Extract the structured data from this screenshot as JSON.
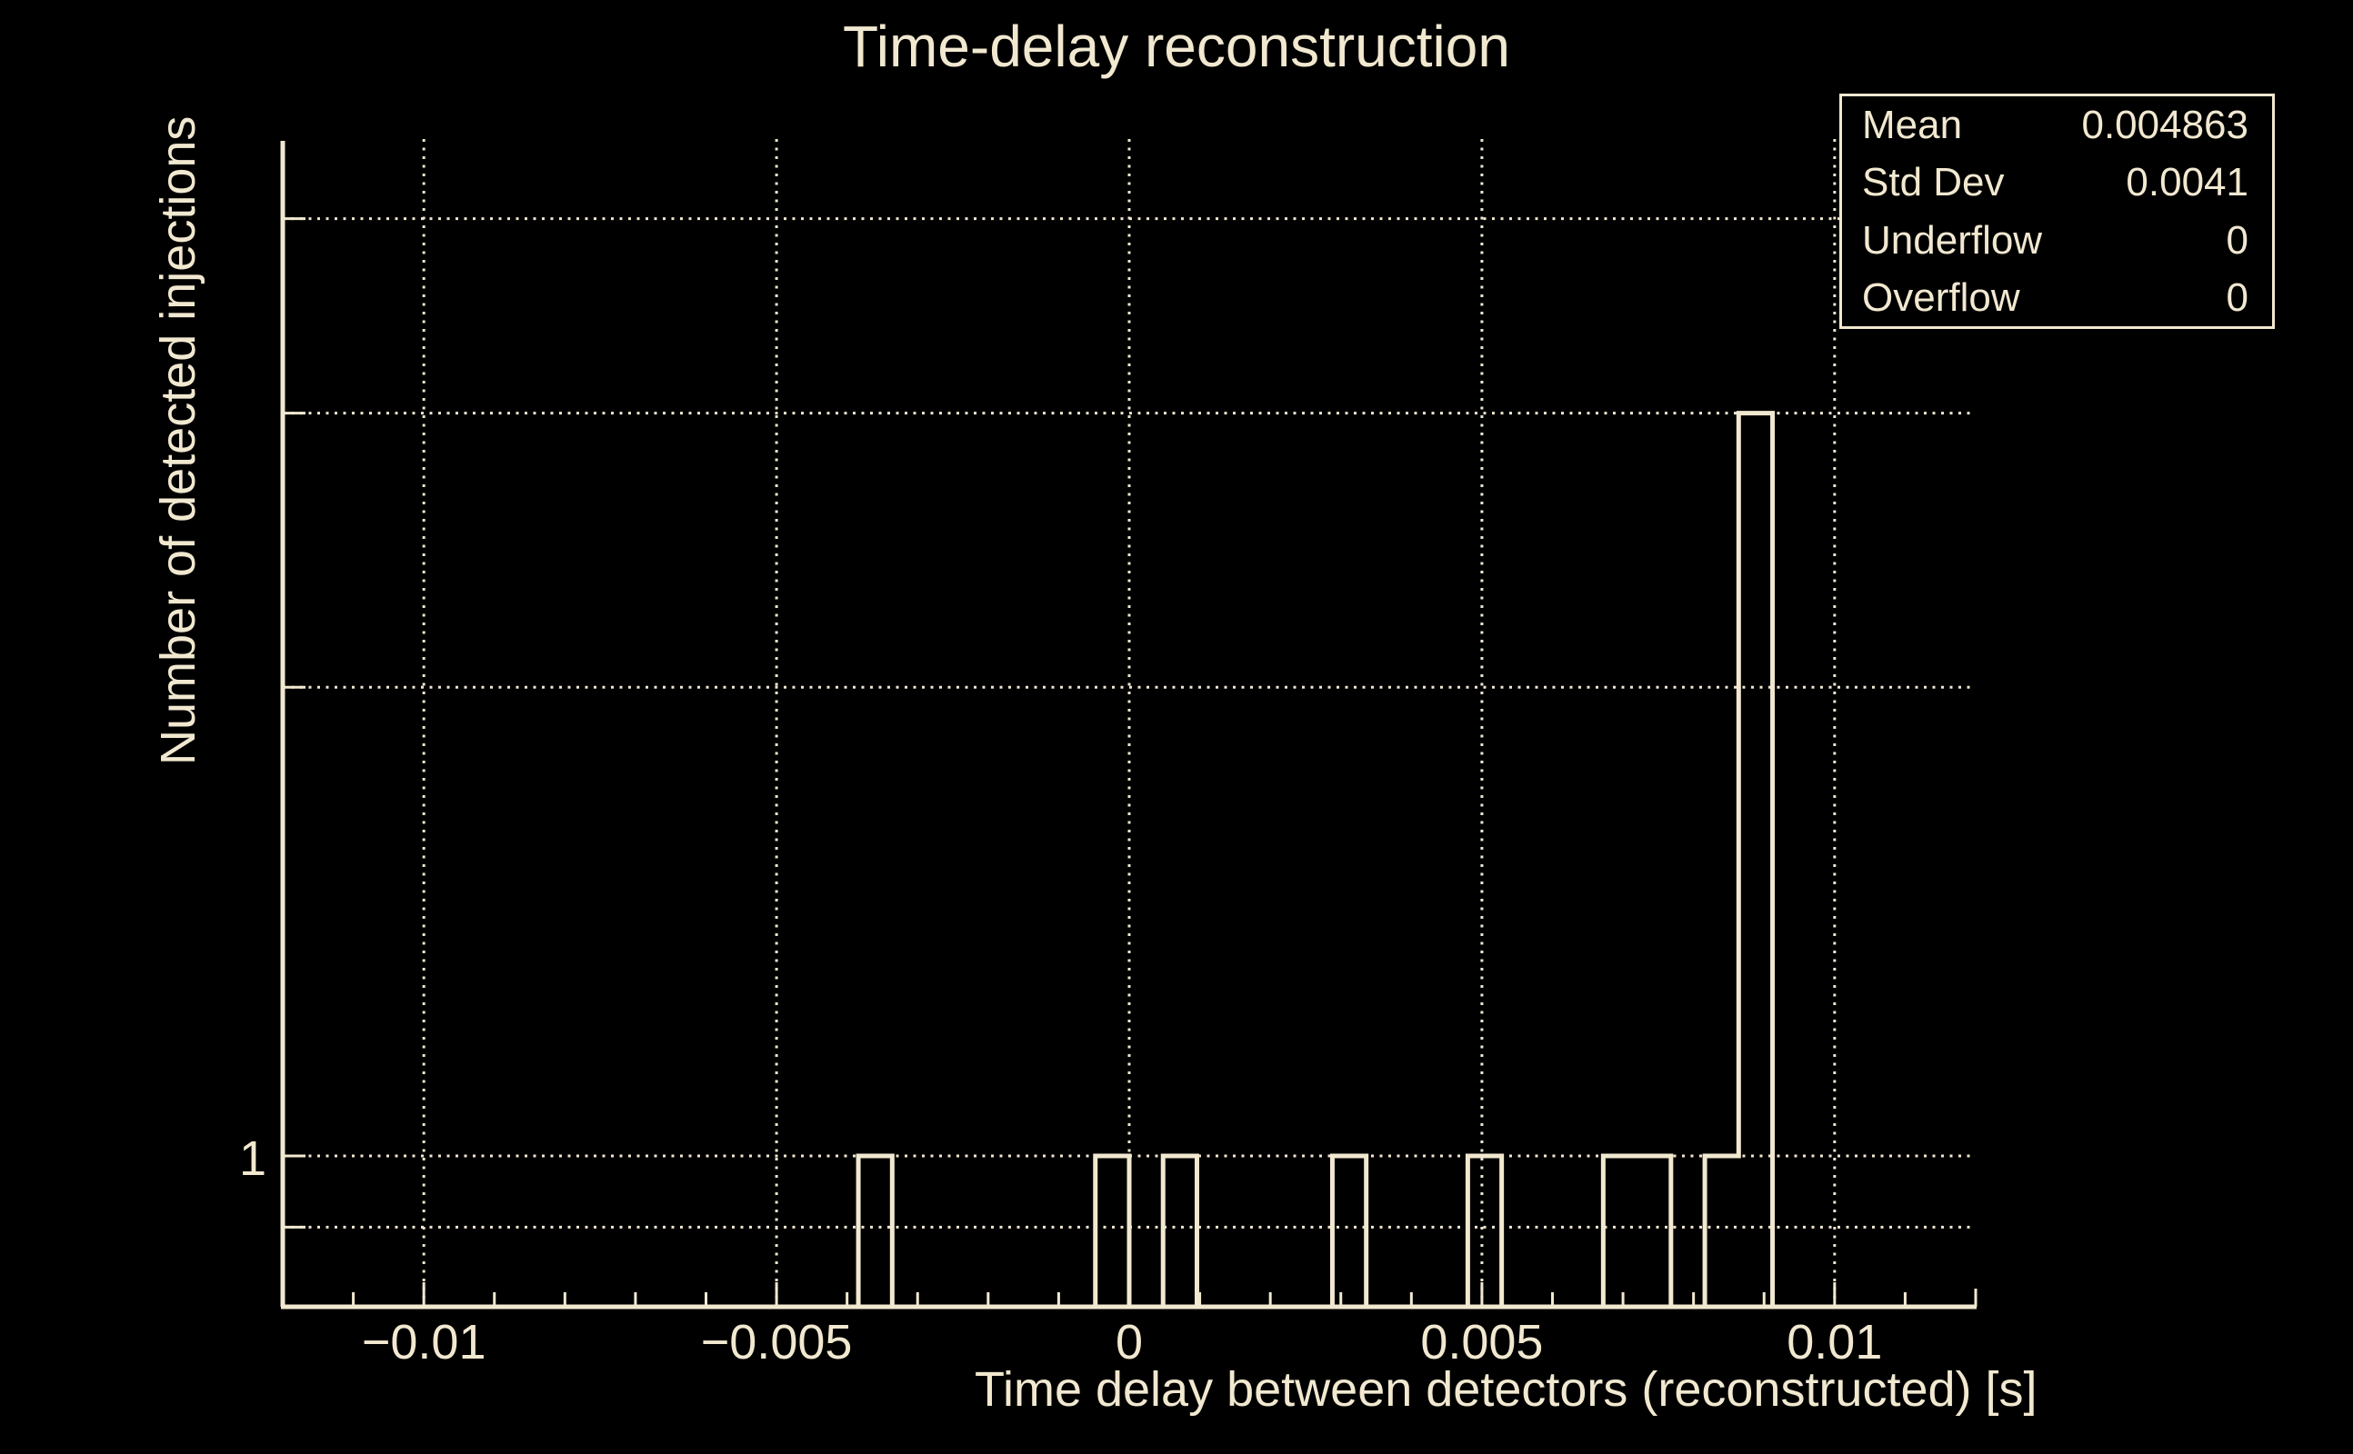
{
  "colors": {
    "background": "#000000",
    "foreground": "#f1e8d0",
    "grid": "#efe6d0"
  },
  "stats_box": {
    "rows": [
      {
        "label": "Mean",
        "value": "0.004863"
      },
      {
        "label": "Std Dev",
        "value": "0.0041"
      },
      {
        "label": "Underflow",
        "value": "0"
      },
      {
        "label": "Overflow",
        "value": "0"
      }
    ]
  },
  "chart_data": {
    "type": "bar",
    "subtype": "histogram-outline",
    "title": "Time-delay reconstruction",
    "xlabel": "Time delay between detectors (reconstructed) [s]",
    "ylabel": "Number of detected injections",
    "x_range": [
      -0.012,
      0.012
    ],
    "nbins": 50,
    "bin_width": 0.00048,
    "y_scale": "log",
    "y_range": [
      0.8,
      4.5
    ],
    "grid": true,
    "x_major_ticks": [
      -0.01,
      -0.005,
      0,
      0.005,
      0.01
    ],
    "x_tick_labels": [
      "−0.01",
      "−0.005",
      "0",
      "0.005",
      "0.01"
    ],
    "x_minor_tick_step": 0.001,
    "y_grid_ticks": [
      0.8,
      0.9,
      1,
      2,
      3,
      4
    ],
    "y_labeled_ticks": [
      1
    ],
    "y_tick_labels": [
      "1"
    ],
    "entries": 11,
    "nonzero_bins": [
      {
        "bin_index": 17,
        "x_low": -0.00384,
        "x_high": -0.00336,
        "count": 1
      },
      {
        "bin_index": 24,
        "x_low": -0.00048,
        "x_high": 0.0,
        "count": 1
      },
      {
        "bin_index": 26,
        "x_low": 0.00048,
        "x_high": 0.00096,
        "count": 1
      },
      {
        "bin_index": 31,
        "x_low": 0.00288,
        "x_high": 0.00336,
        "count": 1
      },
      {
        "bin_index": 35,
        "x_low": 0.0048,
        "x_high": 0.00528,
        "count": 1
      },
      {
        "bin_index": 39,
        "x_low": 0.00672,
        "x_high": 0.0072,
        "count": 1
      },
      {
        "bin_index": 40,
        "x_low": 0.0072,
        "x_high": 0.00768,
        "count": 1
      },
      {
        "bin_index": 42,
        "x_low": 0.00816,
        "x_high": 0.00864,
        "count": 1
      },
      {
        "bin_index": 43,
        "x_low": 0.00864,
        "x_high": 0.00912,
        "count": 3
      }
    ]
  }
}
